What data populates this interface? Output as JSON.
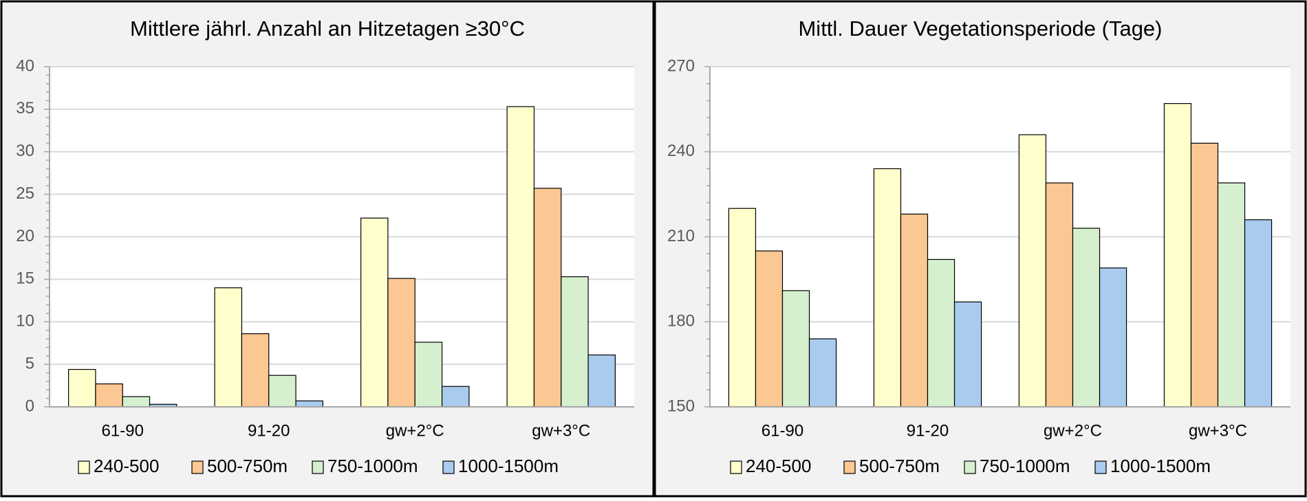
{
  "colors": {
    "panel_bg": "#f2f2f2",
    "plot_bg": "#ffffff",
    "grid": "#d9d9d9",
    "axis": "#a6a6a6",
    "border": "#000000",
    "text": "#000000",
    "tick_text": "#595959",
    "bar_outline": "#000000",
    "series": [
      "#ffffcc",
      "#fbc793",
      "#d6f0cf",
      "#a9cbee"
    ]
  },
  "chart_data": [
    {
      "type": "bar",
      "title": "Mittlere jährl. Anzahl an Hitzetagen ≥30°C",
      "xlabel": "",
      "ylabel": "",
      "categories": [
        "61-90",
        "91-20",
        "gw+2°C",
        "gw+3°C"
      ],
      "ylim": [
        0,
        40
      ],
      "yticks": [
        0,
        5,
        10,
        15,
        20,
        25,
        30,
        35,
        40
      ],
      "grid": true,
      "legend_position": "bottom",
      "series": [
        {
          "name": "240-500",
          "values": [
            4.4,
            14.0,
            22.2,
            35.3
          ]
        },
        {
          "name": "500-750m",
          "values": [
            2.7,
            8.6,
            15.1,
            25.7
          ]
        },
        {
          "name": "750-1000m",
          "values": [
            1.2,
            3.7,
            7.6,
            15.3
          ]
        },
        {
          "name": "1000-1500m",
          "values": [
            0.3,
            0.7,
            2.4,
            6.1
          ]
        }
      ]
    },
    {
      "type": "bar",
      "title": "Mittl. Dauer Vegetationsperiode (Tage)",
      "xlabel": "",
      "ylabel": "",
      "categories": [
        "61-90",
        "91-20",
        "gw+2°C",
        "gw+3°C"
      ],
      "ylim": [
        150,
        270
      ],
      "yticks": [
        150,
        180,
        210,
        240,
        270
      ],
      "grid": true,
      "legend_position": "bottom",
      "series": [
        {
          "name": "240-500",
          "values": [
            220,
            234,
            246,
            257
          ]
        },
        {
          "name": "500-750m",
          "values": [
            205,
            218,
            229,
            243
          ]
        },
        {
          "name": "750-1000m",
          "values": [
            191,
            202,
            213,
            229
          ]
        },
        {
          "name": "1000-1500m",
          "values": [
            174,
            187,
            199,
            216
          ]
        }
      ]
    }
  ]
}
